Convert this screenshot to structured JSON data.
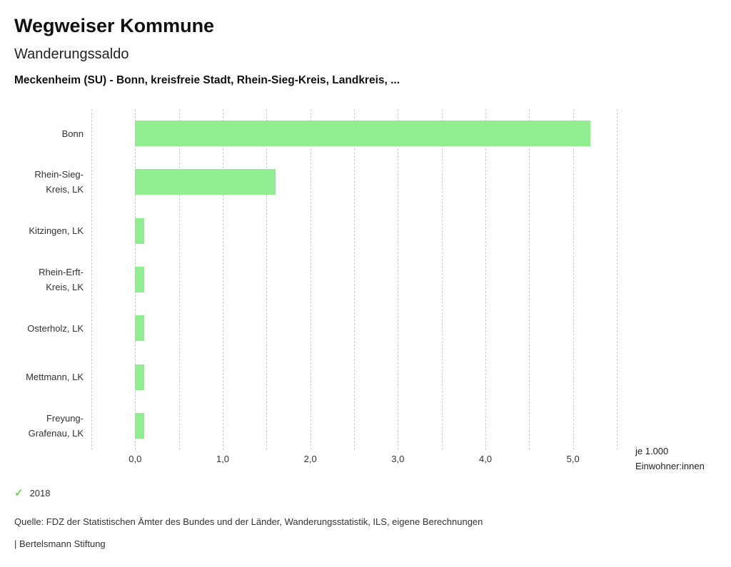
{
  "header": {
    "title": "Wegweiser Kommune",
    "subtitle": "Wanderungssaldo",
    "description": "Meckenheim (SU) - Bonn, kreisfreie Stadt, Rhein-Sieg-Kreis, Landkreis, ..."
  },
  "chart_data": {
    "type": "bar",
    "orientation": "horizontal",
    "title": "Wanderungssaldo",
    "series_name": "2018",
    "categories": [
      "Bonn",
      "Rhein-Sieg-Kreis, LK",
      "Kitzingen, LK",
      "Rhein-Erft-Kreis, LK",
      "Osterholz, LK",
      "Mettmann, LK",
      "Freyung-Grafenau, LK"
    ],
    "category_display_lines": [
      [
        "Bonn"
      ],
      [
        "Rhein-Sieg-",
        "Kreis, LK"
      ],
      [
        "Kitzingen, LK"
      ],
      [
        "Rhein-Erft-",
        "Kreis, LK"
      ],
      [
        "Osterholz, LK"
      ],
      [
        "Mettmann, LK"
      ],
      [
        "Freyung-",
        "Grafenau, LK"
      ]
    ],
    "values": [
      5.2,
      1.6,
      0.1,
      0.1,
      0.1,
      0.1,
      0.1
    ],
    "xlim": [
      -0.5,
      5.5
    ],
    "minor_grid_step": 0.5,
    "grid": "dashed-vertical",
    "x_ticks": [
      {
        "value": 0,
        "label": "0,0"
      },
      {
        "value": 1,
        "label": "1,0"
      },
      {
        "value": 2,
        "label": "2,0"
      },
      {
        "value": 3,
        "label": "3,0"
      },
      {
        "value": 4,
        "label": "4,0"
      },
      {
        "value": 5,
        "label": "5,0"
      }
    ],
    "unit_label": {
      "line1": "je 1.000",
      "line2": "Einwohner:innen"
    },
    "legend": {
      "position": "bottom-left",
      "marker": "check",
      "label": "2018"
    },
    "colors": {
      "bar": "#90ee90",
      "legend_check": "#77d158",
      "grid": "#cccccc"
    }
  },
  "footer": {
    "source": "Quelle: FDZ der Statistischen Ämter des Bundes und der Länder, Wanderungsstatistik, ILS, eigene Berechnungen",
    "branding": "| Bertelsmann Stiftung"
  }
}
